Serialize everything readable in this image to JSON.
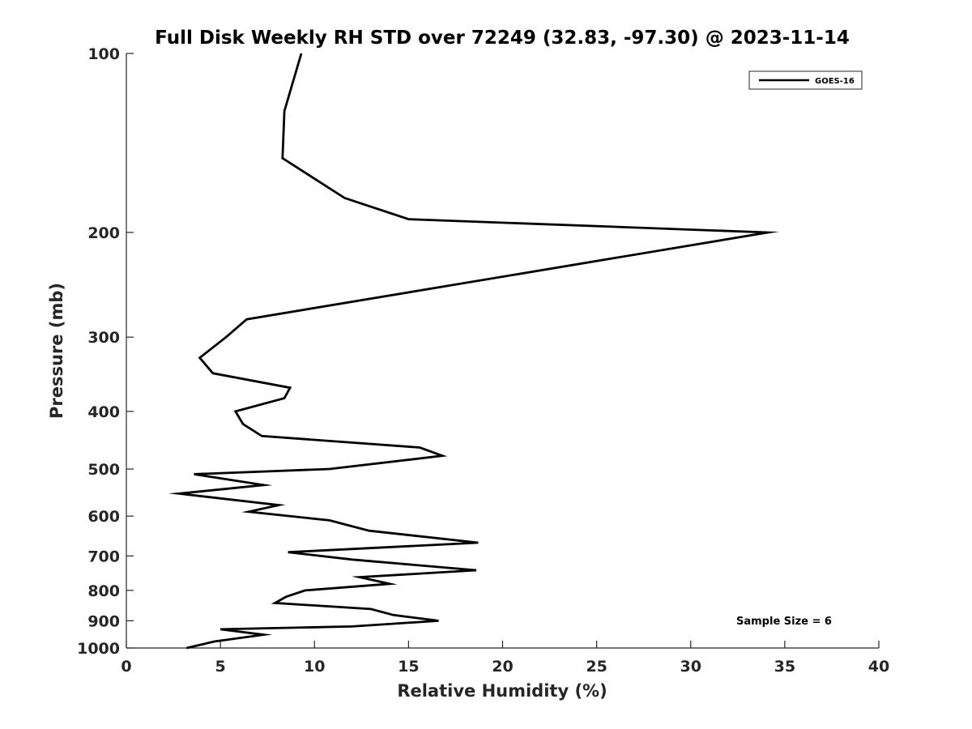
{
  "chart_data": {
    "type": "line",
    "title": "Full Disk Weekly RH STD over 72249 (32.83, -97.30) @ 2023-11-14",
    "xlabel": "Relative Humidity (%)",
    "ylabel": "Pressure (mb)",
    "xlim": [
      0,
      40
    ],
    "ylim": [
      100,
      1000
    ],
    "yscale": "log",
    "yreversed": true,
    "xticks": [
      0,
      5,
      10,
      15,
      20,
      25,
      30,
      35,
      40
    ],
    "yticks": [
      100,
      200,
      300,
      400,
      500,
      600,
      700,
      800,
      900,
      1000
    ],
    "legend_position": "top-right",
    "series": [
      {
        "name": "GOES-16",
        "color": "#000000",
        "rh": [
          9.3,
          8.4,
          8.3,
          11.6,
          15.0,
          34.1,
          6.4,
          5.3,
          3.9,
          4.6,
          8.7,
          8.4,
          5.8,
          6.2,
          7.2,
          15.6,
          16.8,
          10.8,
          3.6,
          7.3,
          2.8,
          8.1,
          6.5,
          10.8,
          12.9,
          18.7,
          8.6,
          12.0,
          18.6,
          12.4,
          14.0,
          9.5,
          8.5,
          7.9,
          13.0,
          14.2,
          16.6,
          12.0,
          5.0,
          7.3,
          4.7,
          3.2
        ],
        "pressure": [
          100,
          125,
          150,
          175,
          190,
          200,
          280,
          300,
          325,
          345,
          365,
          380,
          400,
          420,
          440,
          460,
          475,
          500,
          510,
          532,
          550,
          575,
          590,
          610,
          635,
          665,
          690,
          710,
          740,
          760,
          780,
          800,
          820,
          840,
          860,
          880,
          900,
          920,
          930,
          950,
          975,
          1000
        ]
      }
    ],
    "annotation": "Sample Size = 6"
  }
}
